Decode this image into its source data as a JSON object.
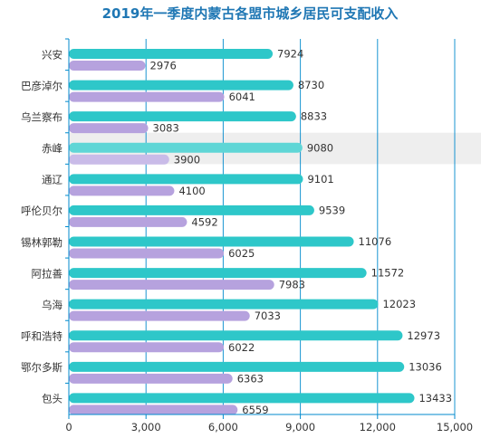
{
  "chart_data": {
    "type": "bar",
    "orientation": "horizontal",
    "title": "2019年一季度内蒙古各盟市城乡居民可支配收入",
    "categories": [
      "兴安",
      "巴彦淖尔",
      "乌兰察布",
      "赤峰",
      "通辽",
      "呼伦贝尔",
      "锡林郭勒",
      "阿拉善",
      "乌海",
      "呼和浩特",
      "鄂尔多斯",
      "包头"
    ],
    "series": [
      {
        "color": "#2ec7c9",
        "values": [
          7924,
          8730,
          8833,
          9080,
          9101,
          9539,
          11076,
          11572,
          12023,
          12973,
          13036,
          13433
        ]
      },
      {
        "color": "#b6a2de",
        "values": [
          2976,
          6041,
          3083,
          3900,
          4100,
          4592,
          6025,
          7983,
          7033,
          6022,
          6363,
          6559
        ]
      }
    ],
    "x_ticks": [
      "0",
      "3,000",
      "6,000",
      "9,000",
      "12,000",
      "15,000"
    ],
    "xlim": [
      0,
      15000
    ],
    "grid": "vertical",
    "highlighted_category": "赤峰",
    "highlight_color": "#eeeeee",
    "axis_color": "#008acd"
  }
}
